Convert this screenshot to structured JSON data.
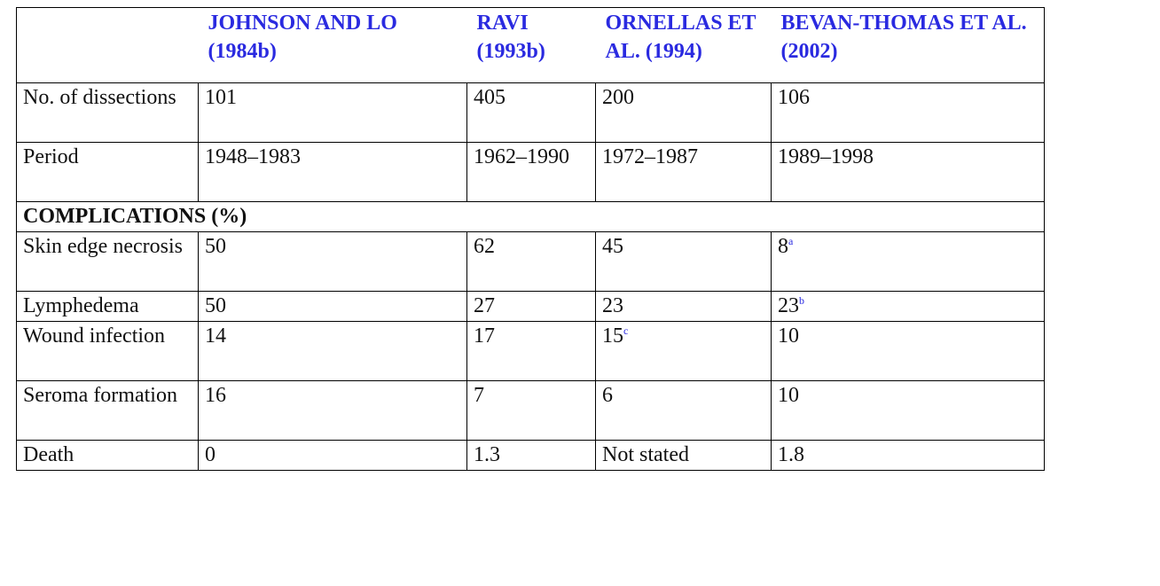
{
  "table": {
    "headers": [
      "",
      "JOHNSON AND LO (1984b)",
      "RAVI (1993b)",
      "ORNELLAS ET AL. (1994)",
      "BEVAN-THOMAS ET AL. (2002)"
    ],
    "rows_top": [
      {
        "label": "No. of dissections",
        "values": [
          "101",
          "405",
          "200",
          "106"
        ]
      },
      {
        "label": "Period",
        "values": [
          "1948–1983",
          "1962–1990",
          "1972–1987",
          "1989–1998"
        ]
      }
    ],
    "section_label": "COMPLICATIONS (%)",
    "rows_bottom": [
      {
        "label": "Skin edge necrosis",
        "values": [
          "50",
          "62",
          "45",
          "8"
        ],
        "notes": [
          "",
          "",
          "",
          "a"
        ]
      },
      {
        "label": "Lymphedema",
        "values": [
          "50",
          "27",
          "23",
          "23"
        ],
        "notes": [
          "",
          "",
          "",
          "b"
        ]
      },
      {
        "label": "Wound infection",
        "values": [
          "14",
          "17",
          "15",
          "10"
        ],
        "notes": [
          "",
          "",
          "c",
          ""
        ]
      },
      {
        "label": "Seroma formation",
        "values": [
          "16",
          "7",
          "6",
          "10"
        ],
        "notes": [
          "",
          "",
          "",
          ""
        ]
      },
      {
        "label": "Death",
        "values": [
          "0",
          "1.3",
          "Not stated",
          "1.8"
        ],
        "notes": [
          "",
          "",
          "",
          ""
        ]
      }
    ]
  }
}
